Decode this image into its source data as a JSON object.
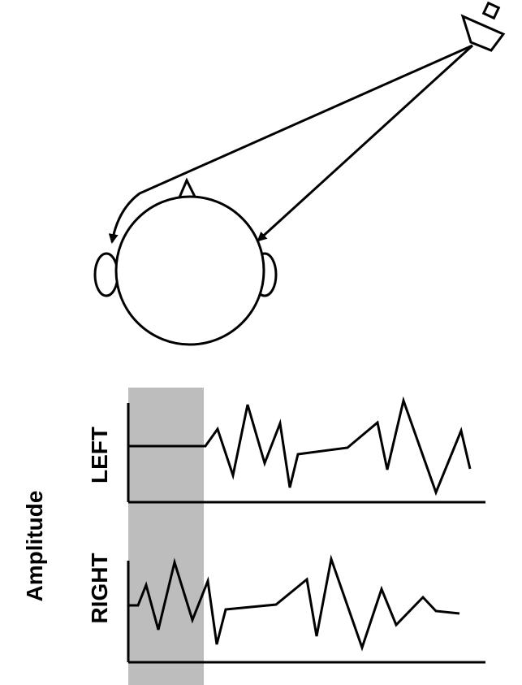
{
  "labels": {
    "y_axis": "Amplitude",
    "left_channel": "LEFT",
    "right_channel": "RIGHT"
  },
  "colors": {
    "ink": "#000000",
    "shade": "#bdbdbd",
    "background": "#ffffff"
  },
  "icons": [
    "loudspeaker-icon",
    "head-icon"
  ]
}
